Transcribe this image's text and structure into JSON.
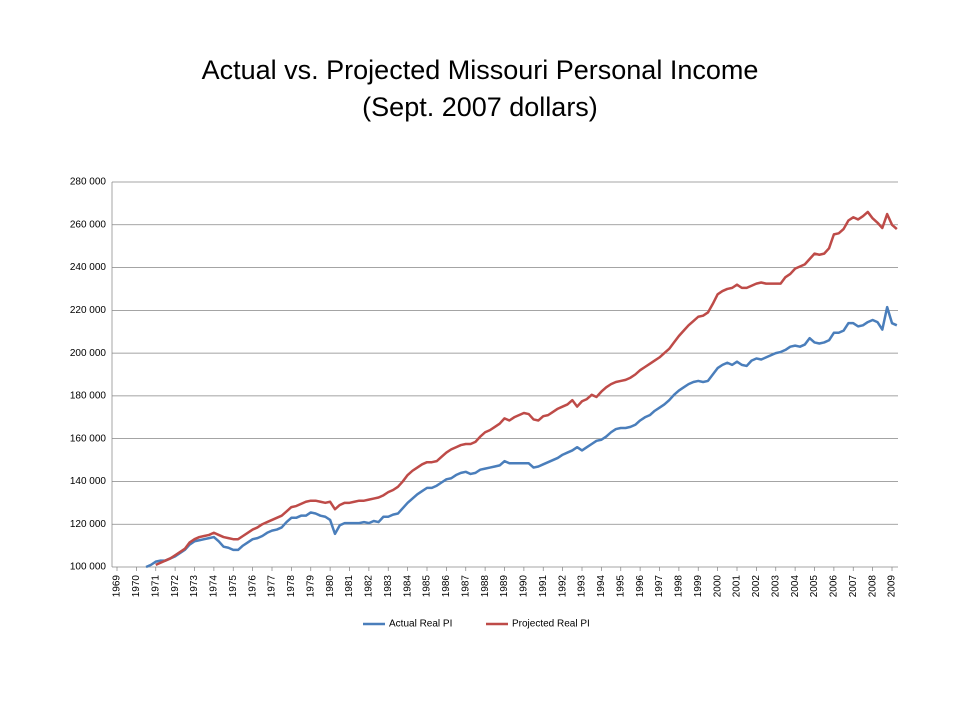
{
  "chart_data": {
    "type": "line",
    "title": "Actual vs. Projected Missouri Personal Income",
    "subtitle": "(Sept. 2007 dollars)",
    "categories": [
      "1969",
      null,
      null,
      null,
      "1970",
      null,
      null,
      null,
      "1971",
      null,
      null,
      null,
      "1972",
      null,
      null,
      null,
      "1973",
      null,
      null,
      null,
      "1974",
      null,
      null,
      null,
      "1975",
      null,
      null,
      null,
      "1976",
      null,
      null,
      null,
      "1977",
      null,
      null,
      null,
      "1978",
      null,
      null,
      null,
      "1979",
      null,
      null,
      null,
      "1980",
      null,
      null,
      null,
      "1981",
      null,
      null,
      null,
      "1982",
      null,
      null,
      null,
      "1983",
      null,
      null,
      null,
      "1984",
      null,
      null,
      null,
      "1985",
      null,
      null,
      null,
      "1986",
      null,
      null,
      null,
      "1987",
      null,
      null,
      null,
      "1988",
      null,
      null,
      null,
      "1989",
      null,
      null,
      null,
      "1990",
      null,
      null,
      null,
      "1991",
      null,
      null,
      null,
      "1992",
      null,
      null,
      null,
      "1993",
      null,
      null,
      null,
      "1994",
      null,
      null,
      null,
      "1995",
      null,
      null,
      null,
      "1996",
      null,
      null,
      null,
      "1997",
      null,
      null,
      null,
      "1998",
      null,
      null,
      null,
      "1999",
      null,
      null,
      null,
      "2000",
      null,
      null,
      null,
      "2001",
      null,
      null,
      null,
      "2002",
      null,
      null,
      null,
      "2003",
      null,
      null,
      null,
      "2004",
      null,
      null,
      null,
      "2005",
      null,
      null,
      null,
      "2006",
      null,
      null,
      null,
      "2007",
      null,
      null,
      null,
      "2008",
      null,
      null,
      null,
      "2009",
      null
    ],
    "series": [
      {
        "name": "Actual Real PI",
        "color": "#4a7ebb",
        "values": [
          null,
          null,
          null,
          null,
          null,
          null,
          100000,
          101000,
          102500,
          103000,
          103000,
          104000,
          105000,
          106500,
          108000,
          110500,
          112000,
          112500,
          113000,
          113500,
          114000,
          112000,
          109500,
          109000,
          108000,
          108000,
          110000,
          111500,
          113000,
          113500,
          114500,
          116000,
          117000,
          117500,
          118500,
          121000,
          123000,
          123000,
          124000,
          124000,
          125500,
          125000,
          124000,
          123500,
          122000,
          115500,
          119500,
          120500,
          120500,
          120500,
          120500,
          121000,
          120500,
          121500,
          121000,
          123500,
          123500,
          124500,
          125000,
          127500,
          130000,
          132000,
          134000,
          135500,
          137000,
          137000,
          138000,
          139500,
          141000,
          141500,
          143000,
          144000,
          144500,
          143500,
          144000,
          145500,
          146000,
          146500,
          147000,
          147500,
          149500,
          148500,
          148500,
          148500,
          148500,
          148500,
          146500,
          147000,
          148000,
          149000,
          150000,
          151000,
          152500,
          153500,
          154500,
          156000,
          154500,
          156000,
          157500,
          159000,
          159500,
          161000,
          163000,
          164500,
          165000,
          165000,
          165500,
          166500,
          168500,
          170000,
          171000,
          173000,
          174500,
          176000,
          178000,
          180500,
          182500,
          184000,
          185500,
          186500,
          187000,
          186500,
          187000,
          190000,
          193000,
          194500,
          195500,
          194500,
          196000,
          194500,
          194000,
          196500,
          197500,
          197000,
          198000,
          199000,
          200000,
          200500,
          201500,
          203000,
          203500,
          203000,
          204000,
          207000,
          205000,
          204500,
          205000,
          206000,
          209500,
          209500,
          210500,
          214000,
          214000,
          212500,
          213000,
          214500,
          215500,
          214500,
          211000,
          221500,
          214000,
          213000
        ]
      },
      {
        "name": "Projected Real PI",
        "color": "#be4b48",
        "values": [
          null,
          null,
          null,
          null,
          null,
          null,
          null,
          null,
          101000,
          102000,
          103000,
          104000,
          105500,
          107000,
          108500,
          111500,
          113000,
          114000,
          114500,
          115000,
          116000,
          115000,
          114000,
          113500,
          113000,
          113000,
          114500,
          116000,
          117500,
          118500,
          120000,
          121000,
          122000,
          123000,
          124000,
          126000,
          128000,
          128500,
          129500,
          130500,
          131000,
          131000,
          130500,
          130000,
          130500,
          127000,
          129000,
          130000,
          130000,
          130500,
          131000,
          131000,
          131500,
          132000,
          132500,
          133500,
          135000,
          136000,
          137500,
          140000,
          143000,
          145000,
          146500,
          148000,
          149000,
          149000,
          149500,
          151500,
          153500,
          155000,
          156000,
          157000,
          157500,
          157500,
          158500,
          161000,
          163000,
          164000,
          165500,
          167000,
          169500,
          168500,
          170000,
          171000,
          172000,
          171500,
          169000,
          168500,
          170500,
          171000,
          172500,
          174000,
          175000,
          176000,
          178000,
          175000,
          177500,
          178500,
          180500,
          179500,
          182000,
          184000,
          185500,
          186500,
          187000,
          187500,
          188500,
          190000,
          192000,
          193500,
          195000,
          196500,
          198000,
          200000,
          202000,
          205000,
          208000,
          210500,
          213000,
          215000,
          217000,
          217500,
          219000,
          223000,
          227500,
          229000,
          230000,
          230500,
          232000,
          230500,
          230500,
          231500,
          232500,
          233000,
          232500,
          232500,
          232500,
          232500,
          235500,
          237000,
          239500,
          240500,
          241500,
          244000,
          246500,
          246000,
          246500,
          249000,
          255500,
          256000,
          258000,
          262000,
          263500,
          262500,
          264000,
          266000,
          263000,
          261000,
          258500,
          265000,
          260000,
          258000
        ]
      }
    ],
    "ylim": [
      100000,
      280000
    ],
    "yticks": [
      {
        "value": 100000,
        "label": "100 000"
      },
      {
        "value": 120000,
        "label": "120 000"
      },
      {
        "value": 140000,
        "label": "140 000"
      },
      {
        "value": 160000,
        "label": "160 000"
      },
      {
        "value": 180000,
        "label": "180 000"
      },
      {
        "value": 200000,
        "label": "200 000"
      },
      {
        "value": 220000,
        "label": "220 000"
      },
      {
        "value": 240000,
        "label": "240 000"
      },
      {
        "value": 260000,
        "label": "260 000"
      },
      {
        "value": 280000,
        "label": "280 000"
      }
    ],
    "grid": true,
    "legend": "bottom"
  }
}
